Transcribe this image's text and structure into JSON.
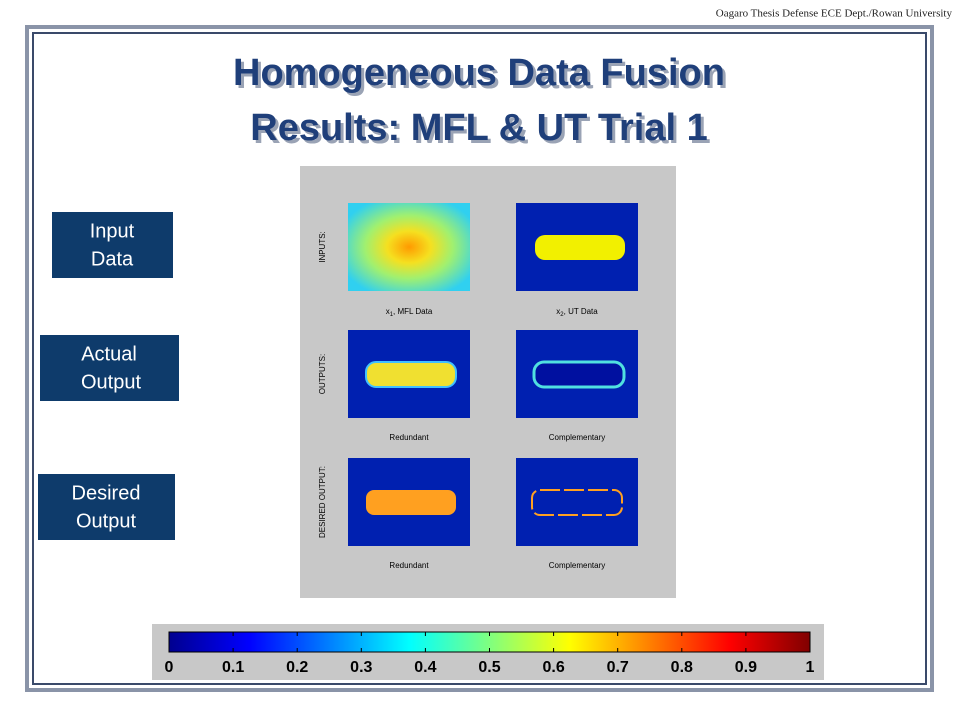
{
  "header": "Oagaro Thesis Defense ECE Dept./Rowan University",
  "title": [
    "Homogeneous Data Fusion",
    "Results: MFL & UT Trial 1"
  ],
  "row_labels": [
    [
      "Input",
      "Data"
    ],
    [
      "Actual",
      "Output"
    ],
    [
      "Desired",
      "Output"
    ]
  ],
  "figure": {
    "row_titles": [
      "INPUTS:",
      "OUTPUTS:",
      "DESIRED OUTPUT:"
    ],
    "input_captions": [
      {
        "var": "x",
        "sub": "1",
        "label": ", MFL Data"
      },
      {
        "var": "x",
        "sub": "2",
        "label": ", UT Data"
      }
    ],
    "output_captions": [
      "Redundant",
      "Complementary"
    ],
    "desired_captions": [
      "Redundant",
      "Complementary"
    ]
  },
  "colorbar": {
    "lim": [
      0,
      1
    ],
    "ticks": [
      0,
      0.1,
      0.2,
      0.3,
      0.4,
      0.5,
      0.6,
      0.7,
      0.8,
      0.9,
      1
    ]
  }
}
